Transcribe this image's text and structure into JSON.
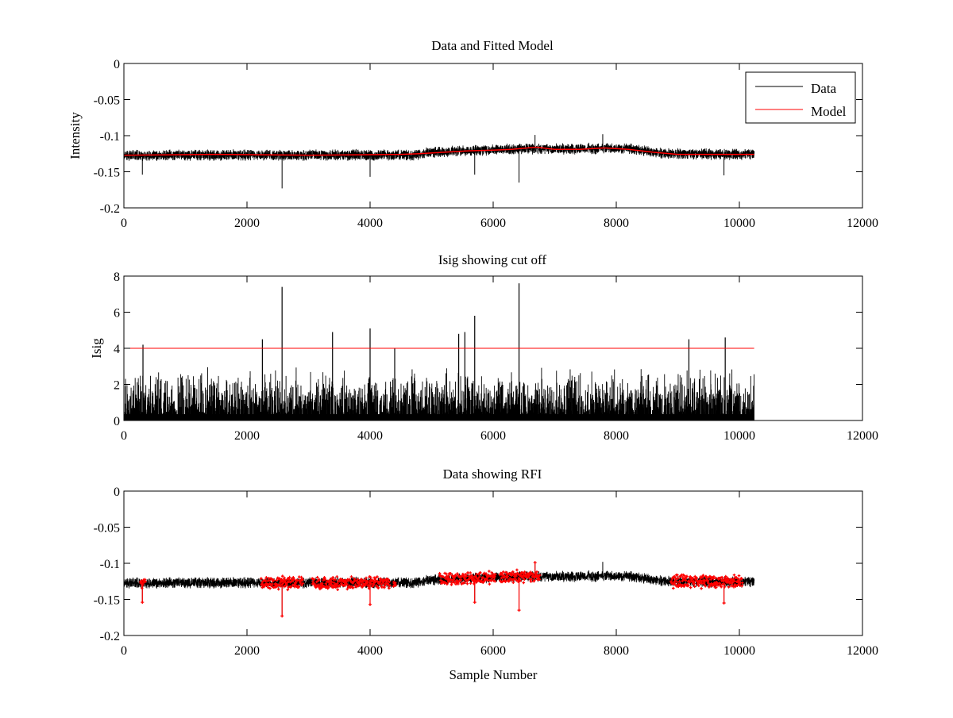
{
  "chart_data": [
    {
      "type": "line",
      "title": "Data and Fitted Model",
      "xlabel": "",
      "ylabel": "Intensity",
      "xlim": [
        0,
        12000
      ],
      "ylim": [
        -0.2,
        0
      ],
      "xticks": [
        0,
        2000,
        4000,
        6000,
        8000,
        10000,
        12000
      ],
      "yticks": [
        0,
        -0.05,
        -0.1,
        -0.15,
        -0.2
      ],
      "xtick_labels": [
        "0",
        "2000",
        "4000",
        "6000",
        "8000",
        "10000",
        "12000"
      ],
      "ytick_labels": [
        "0",
        "-0.05",
        "-0.1",
        "-0.15",
        "-0.2"
      ],
      "legend": {
        "position": "top-right",
        "entries": [
          {
            "label": "Data",
            "color": "#000000"
          },
          {
            "label": "Model",
            "color": "#ff0000"
          }
        ]
      },
      "series": [
        {
          "name": "Data",
          "color": "#000000",
          "style": "noise",
          "n": 10240,
          "baseline": [
            [
              0,
              -0.127
            ],
            [
              4700,
              -0.127
            ],
            [
              5000,
              -0.123
            ],
            [
              6500,
              -0.118
            ],
            [
              8200,
              -0.118
            ],
            [
              8800,
              -0.125
            ],
            [
              10240,
              -0.126
            ]
          ],
          "noise": 0.0065,
          "spikes": [
            [
              300,
              -0.154
            ],
            [
              2570,
              -0.173
            ],
            [
              4000,
              -0.157
            ],
            [
              5700,
              -0.154
            ],
            [
              6420,
              -0.165
            ],
            [
              6680,
              -0.099
            ],
            [
              7780,
              -0.098
            ],
            [
              9750,
              -0.155
            ]
          ]
        },
        {
          "name": "Model",
          "color": "#ff0000",
          "style": "line",
          "x": [
            0,
            1500,
            3000,
            4500,
            4800,
            5200,
            5600,
            6000,
            6300,
            6700,
            7000,
            7400,
            7800,
            8200,
            8600,
            9000,
            10240
          ],
          "y": [
            -0.127,
            -0.126,
            -0.127,
            -0.126,
            -0.125,
            -0.123,
            -0.121,
            -0.12,
            -0.119,
            -0.116,
            -0.119,
            -0.119,
            -0.117,
            -0.119,
            -0.123,
            -0.126,
            -0.126
          ]
        }
      ]
    },
    {
      "type": "line",
      "title": "Isig showing cut off",
      "xlabel": "",
      "ylabel": "Isig",
      "xlim": [
        0,
        12000
      ],
      "ylim": [
        0,
        8
      ],
      "xticks": [
        0,
        2000,
        4000,
        6000,
        8000,
        10000,
        12000
      ],
      "yticks": [
        0,
        2,
        4,
        6,
        8
      ],
      "xtick_labels": [
        "0",
        "2000",
        "4000",
        "6000",
        "8000",
        "10000",
        "12000"
      ],
      "ytick_labels": [
        "0",
        "2",
        "4",
        "6",
        "8"
      ],
      "series": [
        {
          "name": "Isig",
          "color": "#000000",
          "style": "bars",
          "n": 10240,
          "typical_max": 2.5,
          "spikes": [
            [
              310,
              4.2
            ],
            [
              2250,
              4.5
            ],
            [
              2570,
              7.4
            ],
            [
              3390,
              4.9
            ],
            [
              4000,
              5.1
            ],
            [
              4400,
              4.0
            ],
            [
              5440,
              4.8
            ],
            [
              5540,
              4.9
            ],
            [
              5700,
              5.8
            ],
            [
              6420,
              7.6
            ],
            [
              9180,
              4.5
            ],
            [
              9770,
              4.6
            ]
          ]
        },
        {
          "name": "Cut off",
          "color": "#ff0000",
          "style": "line",
          "x": [
            0,
            10240
          ],
          "y": [
            4,
            4
          ]
        }
      ]
    },
    {
      "type": "scatter",
      "title": "Data showing RFI",
      "xlabel": "Sample Number",
      "ylabel": "",
      "xlim": [
        0,
        12000
      ],
      "ylim": [
        -0.2,
        0
      ],
      "xticks": [
        0,
        2000,
        4000,
        6000,
        8000,
        10000,
        12000
      ],
      "yticks": [
        0,
        -0.05,
        -0.1,
        -0.15,
        -0.2
      ],
      "xtick_labels": [
        "0",
        "2000",
        "4000",
        "6000",
        "8000",
        "10000",
        "12000"
      ],
      "ytick_labels": [
        "0",
        "-0.05",
        "-0.1",
        "-0.15",
        "-0.2"
      ],
      "series": [
        {
          "name": "Data",
          "color": "#000000",
          "style": "noise",
          "n": 10240,
          "baseline": [
            [
              0,
              -0.127
            ],
            [
              4700,
              -0.127
            ],
            [
              5000,
              -0.123
            ],
            [
              6500,
              -0.118
            ],
            [
              8200,
              -0.118
            ],
            [
              8800,
              -0.125
            ],
            [
              10240,
              -0.126
            ]
          ],
          "noise": 0.0065,
          "spikes": [
            [
              300,
              -0.154
            ],
            [
              2570,
              -0.173
            ],
            [
              4000,
              -0.157
            ],
            [
              5700,
              -0.154
            ],
            [
              6420,
              -0.165
            ],
            [
              6680,
              -0.099
            ],
            [
              7780,
              -0.098
            ],
            [
              9750,
              -0.155
            ]
          ]
        },
        {
          "name": "RFI",
          "color": "#ff0000",
          "style": "markers",
          "ranges": [
            [
              270,
              350
            ],
            [
              2230,
              2910
            ],
            [
              3060,
              4320
            ],
            [
              4380,
              4420
            ],
            [
              5130,
              6040
            ],
            [
              6110,
              6760
            ],
            [
              8890,
              10050
            ]
          ]
        }
      ]
    }
  ]
}
